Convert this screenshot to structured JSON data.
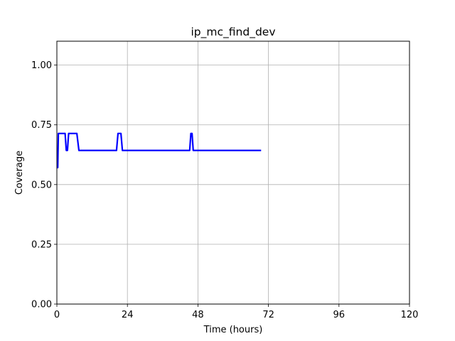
{
  "chart_data": {
    "type": "line",
    "title": "ip_mc_find_dev",
    "xlabel": "Time (hours)",
    "ylabel": "Coverage",
    "xlim": [
      0,
      120
    ],
    "ylim": [
      0,
      1.1
    ],
    "xticks": [
      0,
      24,
      48,
      72,
      96,
      120
    ],
    "xtick_labels": [
      "0",
      "24",
      "48",
      "72",
      "96",
      "120"
    ],
    "yticks": [
      0,
      0.25,
      0.5,
      0.75,
      1.0
    ],
    "ytick_labels": [
      "0.00",
      "0.25",
      "0.50",
      "0.75",
      "1.00"
    ],
    "grid": true,
    "series": [
      {
        "color": "#0000ff",
        "x": [
          0,
          0.3,
          0.5,
          2.8,
          3.2,
          3.6,
          4.0,
          6.8,
          7.5,
          20.3,
          20.8,
          21.8,
          22.3,
          45.2,
          45.6,
          46.0,
          46.4,
          69.5
        ],
        "y": [
          0.571,
          0.571,
          0.714,
          0.714,
          0.643,
          0.643,
          0.714,
          0.714,
          0.643,
          0.643,
          0.714,
          0.714,
          0.643,
          0.643,
          0.714,
          0.714,
          0.643,
          0.643
        ]
      }
    ]
  }
}
